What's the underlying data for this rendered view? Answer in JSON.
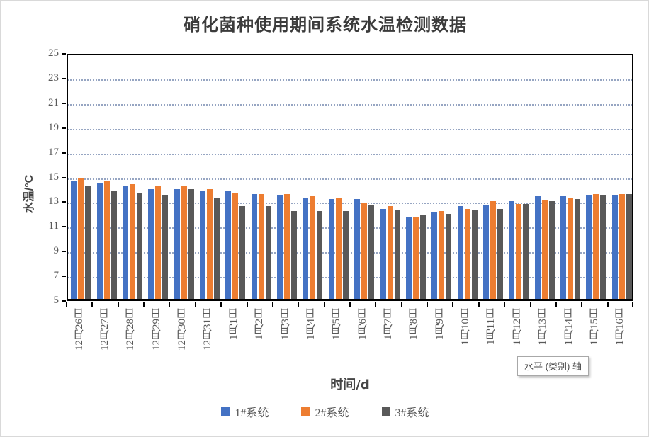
{
  "title": "硝化菌种使用期间系统水温检测数据",
  "y_axis_title": "水温/°C",
  "x_axis_title": "时间/d",
  "tooltip": {
    "text": "水平 (类别) 轴"
  },
  "colors": {
    "series1": "#4472C4",
    "series2": "#ED7D31",
    "series3": "#595959",
    "gridline": "#8496B8",
    "axis": "#000000",
    "tick_text": "#595959",
    "title_text": "#3B3B3B"
  },
  "chart_data": {
    "type": "bar",
    "title": "硝化菌种使用期间系统水温检测数据",
    "xlabel": "时间/d",
    "ylabel": "水温/°C",
    "ylim": [
      5,
      25
    ],
    "ytick_step": 2,
    "yticks": [
      25,
      23,
      21,
      19,
      17,
      15,
      13,
      11,
      9,
      7,
      5
    ],
    "grid": "dotted horizontal",
    "legend_position": "bottom",
    "categories": [
      "12月26日",
      "12月27日",
      "12月28日",
      "12月29日",
      "12月30日",
      "12月31日",
      "1月1日",
      "1月2日",
      "1月3日",
      "1月4日",
      "1月5日",
      "1月6日",
      "1月7日",
      "1月8日",
      "1月9日",
      "1月10日",
      "1月11日",
      "1月12日",
      "1月13日",
      "1月14日",
      "1月15日",
      "1月16日"
    ],
    "series": [
      {
        "name": "1#系统",
        "color": "#4472C4",
        "values": [
          14.5,
          14.4,
          14.2,
          13.9,
          13.9,
          13.7,
          13.7,
          13.5,
          13.4,
          13.2,
          13.1,
          13.1,
          12.3,
          11.6,
          12.0,
          12.5,
          12.6,
          12.9,
          13.3,
          13.3,
          13.4,
          13.4
        ]
      },
      {
        "name": "2#系统",
        "color": "#ED7D31",
        "values": [
          14.8,
          14.5,
          14.3,
          14.1,
          14.2,
          13.9,
          13.6,
          13.5,
          13.5,
          13.3,
          13.2,
          12.8,
          12.5,
          11.6,
          12.1,
          12.3,
          12.9,
          12.7,
          13.0,
          13.2,
          13.5,
          13.5
        ]
      },
      {
        "name": "3#系统",
        "color": "#595959",
        "values": [
          14.1,
          13.7,
          13.6,
          13.4,
          13.9,
          13.2,
          12.5,
          12.5,
          12.1,
          12.1,
          12.1,
          12.6,
          12.2,
          11.8,
          11.9,
          12.2,
          12.3,
          12.7,
          12.9,
          13.1,
          13.4,
          13.5
        ]
      }
    ]
  }
}
